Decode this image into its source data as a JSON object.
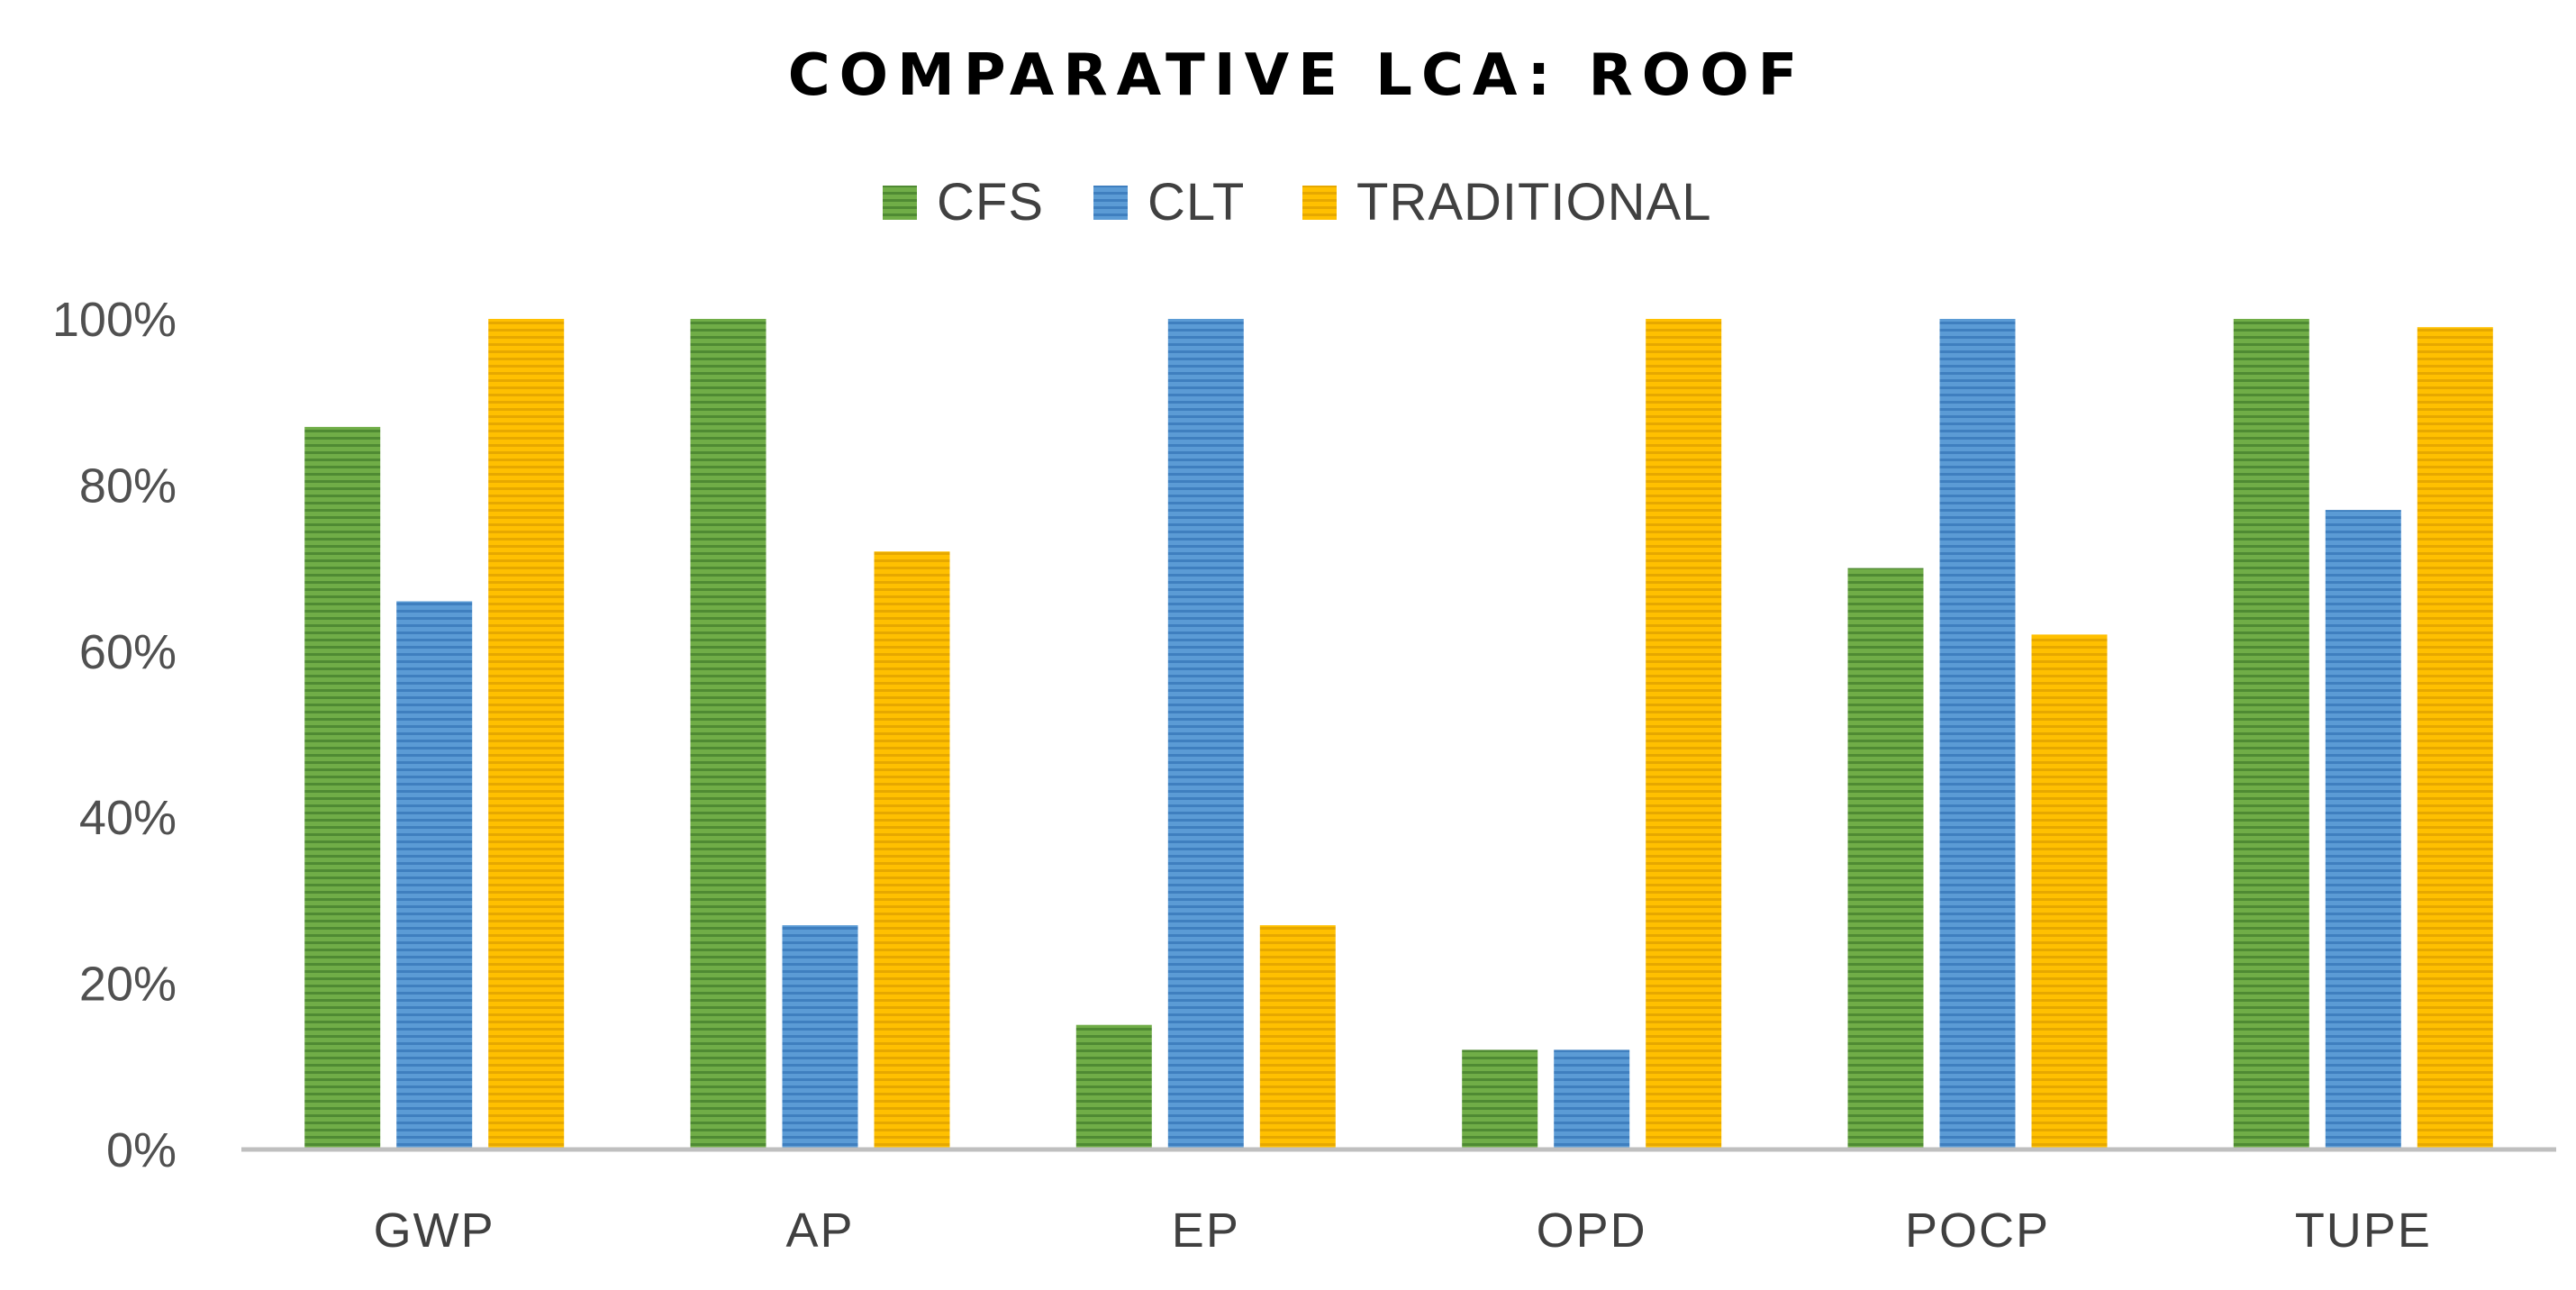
{
  "chart_data": {
    "type": "bar",
    "title": "COMPARATIVE LCA: ROOF",
    "categories": [
      "GWP",
      "AP",
      "EP",
      "OPD",
      "POCP",
      "TUPE"
    ],
    "series": [
      {
        "name": "CFS",
        "color": "#70ad47",
        "values": [
          87,
          100,
          15,
          12,
          70,
          100
        ]
      },
      {
        "name": "CLT",
        "color": "#5b9bd5",
        "values": [
          66,
          27,
          100,
          12,
          100,
          77
        ]
      },
      {
        "name": "TRADITIONAL",
        "color": "#ffc000",
        "values": [
          100,
          72,
          27,
          100,
          62,
          99
        ]
      }
    ],
    "yticks": [
      "0%",
      "20%",
      "40%",
      "60%",
      "80%",
      "100%"
    ],
    "ylim": [
      0,
      100
    ],
    "xlabel": "",
    "ylabel": "",
    "grid": false,
    "legend_position": "top-center"
  }
}
